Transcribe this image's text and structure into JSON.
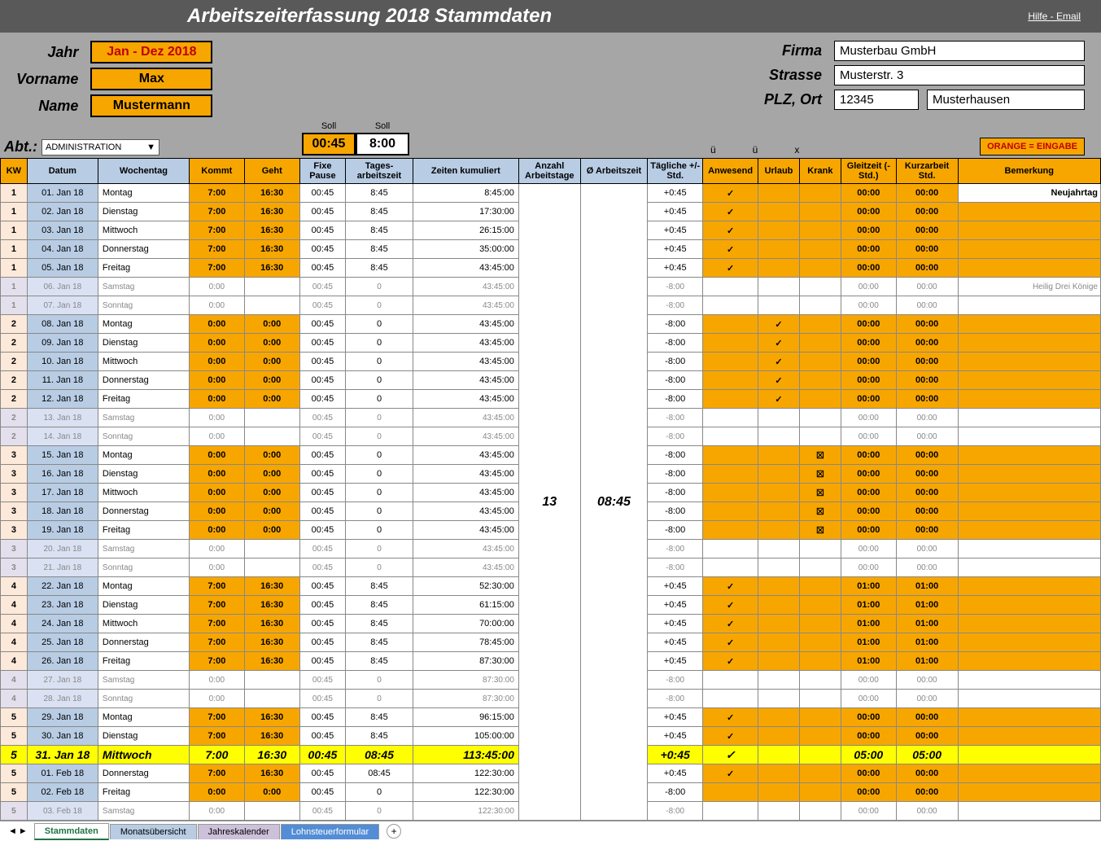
{
  "title": "Arbeitszeiterfassung  2018      Stammdaten",
  "helpLink": "Hilfe - Email",
  "left": {
    "jahr_lbl": "Jahr",
    "jahr_val": "Jan - Dez 2018",
    "vorname_lbl": "Vorname",
    "vorname_val": "Max",
    "name_lbl": "Name",
    "name_val": "Mustermann"
  },
  "right": {
    "firma_lbl": "Firma",
    "firma_val": "Musterbau GmbH",
    "strasse_lbl": "Strasse",
    "strasse_val": "Musterstr. 3",
    "plz_lbl": "PLZ, Ort",
    "plz_val": "12345",
    "ort_val": "Musterhausen"
  },
  "abt": {
    "label": "Abt.:",
    "value": "ADMINISTRATION"
  },
  "soll": {
    "label": "Soll",
    "pause": "00:45",
    "zeit": "8:00"
  },
  "legend": {
    "u": "ü",
    "u2": "ü",
    "x": "x",
    "orange": "ORANGE = EINGABE"
  },
  "headers": [
    "KW",
    "Datum",
    "Wochentag",
    "Kommt",
    "Geht",
    "Fixe Pause",
    "Tages-arbeitszeit",
    "Zeiten kumuliert",
    "Anzahl Arbeitstage",
    "Ø Arbeitszeit",
    "Tägliche +/- Std.",
    "Anwesend",
    "Urlaub",
    "Krank",
    "Gleitzeit (- Std.)",
    "Kurzarbeit Std.",
    "Bemerkung"
  ],
  "rows": [
    {
      "kw": "1",
      "datum": "01. Jan 18",
      "wtag": "Montag",
      "kommt": "7:00",
      "geht": "16:30",
      "pause": "00:45",
      "tages": "8:45",
      "kumul": "8:45:00",
      "anz": "",
      "avg": "",
      "diff": "+0:45",
      "anw": "✓",
      "url": "",
      "krank": "",
      "gleit": "00:00",
      "kurz": "00:00",
      "bem": "Neujahrtag",
      "type": "work"
    },
    {
      "kw": "1",
      "datum": "02. Jan 18",
      "wtag": "Dienstag",
      "kommt": "7:00",
      "geht": "16:30",
      "pause": "00:45",
      "tages": "8:45",
      "kumul": "17:30:00",
      "anz": "",
      "avg": "",
      "diff": "+0:45",
      "anw": "✓",
      "url": "",
      "krank": "",
      "gleit": "00:00",
      "kurz": "00:00",
      "bem": "",
      "type": "work"
    },
    {
      "kw": "1",
      "datum": "03. Jan 18",
      "wtag": "Mittwoch",
      "kommt": "7:00",
      "geht": "16:30",
      "pause": "00:45",
      "tages": "8:45",
      "kumul": "26:15:00",
      "anz": "",
      "avg": "",
      "diff": "+0:45",
      "anw": "✓",
      "url": "",
      "krank": "",
      "gleit": "00:00",
      "kurz": "00:00",
      "bem": "",
      "type": "work"
    },
    {
      "kw": "1",
      "datum": "04. Jan 18",
      "wtag": "Donnerstag",
      "kommt": "7:00",
      "geht": "16:30",
      "pause": "00:45",
      "tages": "8:45",
      "kumul": "35:00:00",
      "anz": "",
      "avg": "",
      "diff": "+0:45",
      "anw": "✓",
      "url": "",
      "krank": "",
      "gleit": "00:00",
      "kurz": "00:00",
      "bem": "",
      "type": "work"
    },
    {
      "kw": "1",
      "datum": "05. Jan 18",
      "wtag": "Freitag",
      "kommt": "7:00",
      "geht": "16:30",
      "pause": "00:45",
      "tages": "8:45",
      "kumul": "43:45:00",
      "anz": "",
      "avg": "",
      "diff": "+0:45",
      "anw": "✓",
      "url": "",
      "krank": "",
      "gleit": "00:00",
      "kurz": "00:00",
      "bem": "",
      "type": "work"
    },
    {
      "kw": "1",
      "datum": "06. Jan 18",
      "wtag": "Samstag",
      "kommt": "0:00",
      "geht": "",
      "pause": "00:45",
      "tages": "0",
      "kumul": "43:45:00",
      "anz": "",
      "avg": "",
      "diff": "-8:00",
      "anw": "",
      "url": "",
      "krank": "",
      "gleit": "00:00",
      "kurz": "00:00",
      "bem": "Heilig Drei Könige",
      "type": "weekend"
    },
    {
      "kw": "1",
      "datum": "07. Jan 18",
      "wtag": "Sonntag",
      "kommt": "0:00",
      "geht": "",
      "pause": "00:45",
      "tages": "0",
      "kumul": "43:45:00",
      "anz": "",
      "avg": "",
      "diff": "-8:00",
      "anw": "",
      "url": "",
      "krank": "",
      "gleit": "00:00",
      "kurz": "00:00",
      "bem": "",
      "type": "weekend"
    },
    {
      "kw": "2",
      "datum": "08. Jan 18",
      "wtag": "Montag",
      "kommt": "0:00",
      "geht": "0:00",
      "pause": "00:45",
      "tages": "0",
      "kumul": "43:45:00",
      "anz": "",
      "avg": "",
      "diff": "-8:00",
      "anw": "",
      "url": "✓",
      "krank": "",
      "gleit": "00:00",
      "kurz": "00:00",
      "bem": "",
      "type": "work"
    },
    {
      "kw": "2",
      "datum": "09. Jan 18",
      "wtag": "Dienstag",
      "kommt": "0:00",
      "geht": "0:00",
      "pause": "00:45",
      "tages": "0",
      "kumul": "43:45:00",
      "anz": "",
      "avg": "",
      "diff": "-8:00",
      "anw": "",
      "url": "✓",
      "krank": "",
      "gleit": "00:00",
      "kurz": "00:00",
      "bem": "",
      "type": "work"
    },
    {
      "kw": "2",
      "datum": "10. Jan 18",
      "wtag": "Mittwoch",
      "kommt": "0:00",
      "geht": "0:00",
      "pause": "00:45",
      "tages": "0",
      "kumul": "43:45:00",
      "anz": "",
      "avg": "",
      "diff": "-8:00",
      "anw": "",
      "url": "✓",
      "krank": "",
      "gleit": "00:00",
      "kurz": "00:00",
      "bem": "",
      "type": "work"
    },
    {
      "kw": "2",
      "datum": "11. Jan 18",
      "wtag": "Donnerstag",
      "kommt": "0:00",
      "geht": "0:00",
      "pause": "00:45",
      "tages": "0",
      "kumul": "43:45:00",
      "anz": "",
      "avg": "",
      "diff": "-8:00",
      "anw": "",
      "url": "✓",
      "krank": "",
      "gleit": "00:00",
      "kurz": "00:00",
      "bem": "",
      "type": "work"
    },
    {
      "kw": "2",
      "datum": "12. Jan 18",
      "wtag": "Freitag",
      "kommt": "0:00",
      "geht": "0:00",
      "pause": "00:45",
      "tages": "0",
      "kumul": "43:45:00",
      "anz": "",
      "avg": "",
      "diff": "-8:00",
      "anw": "",
      "url": "✓",
      "krank": "",
      "gleit": "00:00",
      "kurz": "00:00",
      "bem": "",
      "type": "work"
    },
    {
      "kw": "2",
      "datum": "13. Jan 18",
      "wtag": "Samstag",
      "kommt": "0:00",
      "geht": "",
      "pause": "00:45",
      "tages": "0",
      "kumul": "43:45:00",
      "anz": "",
      "avg": "",
      "diff": "-8:00",
      "anw": "",
      "url": "",
      "krank": "",
      "gleit": "00:00",
      "kurz": "00:00",
      "bem": "",
      "type": "weekend"
    },
    {
      "kw": "2",
      "datum": "14. Jan 18",
      "wtag": "Sonntag",
      "kommt": "0:00",
      "geht": "",
      "pause": "00:45",
      "tages": "0",
      "kumul": "43:45:00",
      "anz": "",
      "avg": "",
      "diff": "-8:00",
      "anw": "",
      "url": "",
      "krank": "",
      "gleit": "00:00",
      "kurz": "00:00",
      "bem": "",
      "type": "weekend"
    },
    {
      "kw": "3",
      "datum": "15. Jan 18",
      "wtag": "Montag",
      "kommt": "0:00",
      "geht": "0:00",
      "pause": "00:45",
      "tages": "0",
      "kumul": "43:45:00",
      "anz": "",
      "avg": "",
      "diff": "-8:00",
      "anw": "",
      "url": "",
      "krank": "☒",
      "gleit": "00:00",
      "kurz": "00:00",
      "bem": "",
      "type": "work"
    },
    {
      "kw": "3",
      "datum": "16. Jan 18",
      "wtag": "Dienstag",
      "kommt": "0:00",
      "geht": "0:00",
      "pause": "00:45",
      "tages": "0",
      "kumul": "43:45:00",
      "anz": "",
      "avg": "",
      "diff": "-8:00",
      "anw": "",
      "url": "",
      "krank": "☒",
      "gleit": "00:00",
      "kurz": "00:00",
      "bem": "",
      "type": "work"
    },
    {
      "kw": "3",
      "datum": "17. Jan 18",
      "wtag": "Mittwoch",
      "kommt": "0:00",
      "geht": "0:00",
      "pause": "00:45",
      "tages": "0",
      "kumul": "43:45:00",
      "anz": "",
      "avg": "",
      "diff": "-8:00",
      "anw": "",
      "url": "",
      "krank": "☒",
      "gleit": "00:00",
      "kurz": "00:00",
      "bem": "",
      "type": "work"
    },
    {
      "kw": "3",
      "datum": "18. Jan 18",
      "wtag": "Donnerstag",
      "kommt": "0:00",
      "geht": "0:00",
      "pause": "00:45",
      "tages": "0",
      "kumul": "43:45:00",
      "anz": "",
      "avg": "",
      "diff": "-8:00",
      "anw": "",
      "url": "",
      "krank": "☒",
      "gleit": "00:00",
      "kurz": "00:00",
      "bem": "",
      "type": "work"
    },
    {
      "kw": "3",
      "datum": "19. Jan 18",
      "wtag": "Freitag",
      "kommt": "0:00",
      "geht": "0:00",
      "pause": "00:45",
      "tages": "0",
      "kumul": "43:45:00",
      "anz": "",
      "avg": "",
      "diff": "-8:00",
      "anw": "",
      "url": "",
      "krank": "☒",
      "gleit": "00:00",
      "kurz": "00:00",
      "bem": "",
      "type": "work"
    },
    {
      "kw": "3",
      "datum": "20. Jan 18",
      "wtag": "Samstag",
      "kommt": "0:00",
      "geht": "",
      "pause": "00:45",
      "tages": "0",
      "kumul": "43:45:00",
      "anz": "",
      "avg": "",
      "diff": "-8:00",
      "anw": "",
      "url": "",
      "krank": "",
      "gleit": "00:00",
      "kurz": "00:00",
      "bem": "",
      "type": "weekend"
    },
    {
      "kw": "3",
      "datum": "21. Jan 18",
      "wtag": "Sonntag",
      "kommt": "0:00",
      "geht": "",
      "pause": "00:45",
      "tages": "0",
      "kumul": "43:45:00",
      "anz": "",
      "avg": "",
      "diff": "-8:00",
      "anw": "",
      "url": "",
      "krank": "",
      "gleit": "00:00",
      "kurz": "00:00",
      "bem": "",
      "type": "weekend"
    },
    {
      "kw": "4",
      "datum": "22. Jan 18",
      "wtag": "Montag",
      "kommt": "7:00",
      "geht": "16:30",
      "pause": "00:45",
      "tages": "8:45",
      "kumul": "52:30:00",
      "anz": "",
      "avg": "",
      "diff": "+0:45",
      "anw": "✓",
      "url": "",
      "krank": "",
      "gleit": "01:00",
      "kurz": "01:00",
      "bem": "",
      "type": "work"
    },
    {
      "kw": "4",
      "datum": "23. Jan 18",
      "wtag": "Dienstag",
      "kommt": "7:00",
      "geht": "16:30",
      "pause": "00:45",
      "tages": "8:45",
      "kumul": "61:15:00",
      "anz": "",
      "avg": "",
      "diff": "+0:45",
      "anw": "✓",
      "url": "",
      "krank": "",
      "gleit": "01:00",
      "kurz": "01:00",
      "bem": "",
      "type": "work"
    },
    {
      "kw": "4",
      "datum": "24. Jan 18",
      "wtag": "Mittwoch",
      "kommt": "7:00",
      "geht": "16:30",
      "pause": "00:45",
      "tages": "8:45",
      "kumul": "70:00:00",
      "anz": "",
      "avg": "",
      "diff": "+0:45",
      "anw": "✓",
      "url": "",
      "krank": "",
      "gleit": "01:00",
      "kurz": "01:00",
      "bem": "",
      "type": "work"
    },
    {
      "kw": "4",
      "datum": "25. Jan 18",
      "wtag": "Donnerstag",
      "kommt": "7:00",
      "geht": "16:30",
      "pause": "00:45",
      "tages": "8:45",
      "kumul": "78:45:00",
      "anz": "",
      "avg": "",
      "diff": "+0:45",
      "anw": "✓",
      "url": "",
      "krank": "",
      "gleit": "01:00",
      "kurz": "01:00",
      "bem": "",
      "type": "work"
    },
    {
      "kw": "4",
      "datum": "26. Jan 18",
      "wtag": "Freitag",
      "kommt": "7:00",
      "geht": "16:30",
      "pause": "00:45",
      "tages": "8:45",
      "kumul": "87:30:00",
      "anz": "",
      "avg": "",
      "diff": "+0:45",
      "anw": "✓",
      "url": "",
      "krank": "",
      "gleit": "01:00",
      "kurz": "01:00",
      "bem": "",
      "type": "work"
    },
    {
      "kw": "4",
      "datum": "27. Jan 18",
      "wtag": "Samstag",
      "kommt": "0:00",
      "geht": "",
      "pause": "00:45",
      "tages": "0",
      "kumul": "87:30:00",
      "anz": "",
      "avg": "",
      "diff": "-8:00",
      "anw": "",
      "url": "",
      "krank": "",
      "gleit": "00:00",
      "kurz": "00:00",
      "bem": "",
      "type": "weekend"
    },
    {
      "kw": "4",
      "datum": "28. Jan 18",
      "wtag": "Sonntag",
      "kommt": "0:00",
      "geht": "",
      "pause": "00:45",
      "tages": "0",
      "kumul": "87:30:00",
      "anz": "",
      "avg": "",
      "diff": "-8:00",
      "anw": "",
      "url": "",
      "krank": "",
      "gleit": "00:00",
      "kurz": "00:00",
      "bem": "",
      "type": "weekend"
    },
    {
      "kw": "5",
      "datum": "29. Jan 18",
      "wtag": "Montag",
      "kommt": "7:00",
      "geht": "16:30",
      "pause": "00:45",
      "tages": "8:45",
      "kumul": "96:15:00",
      "anz": "",
      "avg": "",
      "diff": "+0:45",
      "anw": "✓",
      "url": "",
      "krank": "",
      "gleit": "00:00",
      "kurz": "00:00",
      "bem": "",
      "type": "work"
    },
    {
      "kw": "5",
      "datum": "30. Jan 18",
      "wtag": "Dienstag",
      "kommt": "7:00",
      "geht": "16:30",
      "pause": "00:45",
      "tages": "8:45",
      "kumul": "105:00:00",
      "anz": "",
      "avg": "",
      "diff": "+0:45",
      "anw": "✓",
      "url": "",
      "krank": "",
      "gleit": "00:00",
      "kurz": "00:00",
      "bem": "",
      "type": "work"
    },
    {
      "kw": "5",
      "datum": "31. Jan 18",
      "wtag": "Mittwoch",
      "kommt": "7:00",
      "geht": "16:30",
      "pause": "00:45",
      "tages": "08:45",
      "kumul": "113:45:00",
      "anz": "13",
      "avg": "08:45",
      "diff": "+0:45",
      "anw": "✓",
      "url": "",
      "krank": "",
      "gleit": "05:00",
      "kurz": "05:00",
      "bem": "",
      "type": "highlight"
    },
    {
      "kw": "5",
      "datum": "01. Feb 18",
      "wtag": "Donnerstag",
      "kommt": "7:00",
      "geht": "16:30",
      "pause": "00:45",
      "tages": "08:45",
      "kumul": "122:30:00",
      "anz": "",
      "avg": "",
      "diff": "+0:45",
      "anw": "✓",
      "url": "",
      "krank": "",
      "gleit": "00:00",
      "kurz": "00:00",
      "bem": "",
      "type": "work"
    },
    {
      "kw": "5",
      "datum": "02. Feb 18",
      "wtag": "Freitag",
      "kommt": "0:00",
      "geht": "0:00",
      "pause": "00:45",
      "tages": "0",
      "kumul": "122:30:00",
      "anz": "",
      "avg": "",
      "diff": "-8:00",
      "anw": "",
      "url": "",
      "krank": "",
      "gleit": "00:00",
      "kurz": "00:00",
      "bem": "",
      "type": "work"
    },
    {
      "kw": "5",
      "datum": "03. Feb 18",
      "wtag": "Samstag",
      "kommt": "0:00",
      "geht": "",
      "pause": "00:45",
      "tages": "0",
      "kumul": "122:30:00",
      "anz": "",
      "avg": "",
      "diff": "-8:00",
      "anw": "",
      "url": "",
      "krank": "",
      "gleit": "00:00",
      "kurz": "00:00",
      "bem": "",
      "type": "fade"
    }
  ],
  "tabs": {
    "active": "Stammdaten",
    "t1": "Monatsübersicht",
    "t2": "Jahreskalender",
    "t3": "Lohnsteuerformular"
  }
}
